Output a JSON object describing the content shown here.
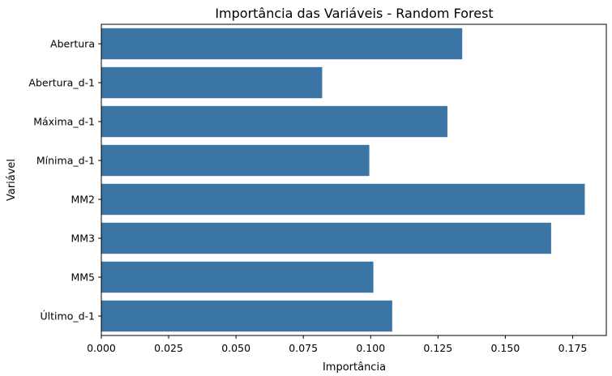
{
  "chart_data": {
    "type": "bar",
    "orientation": "horizontal",
    "title": "Importância das Variáveis - Random Forest",
    "xlabel": "Importância",
    "ylabel": "Variável",
    "categories": [
      "Abertura",
      "Abertura_d-1",
      "Máxima_d-1",
      "Mínima_d-1",
      "MM2",
      "MM3",
      "MM5",
      "Último_d-1"
    ],
    "values": [
      0.134,
      0.082,
      0.1285,
      0.0995,
      0.1795,
      0.167,
      0.101,
      0.108
    ],
    "xlim": [
      0,
      0.1875
    ],
    "xticks": [
      0.0,
      0.025,
      0.05,
      0.075,
      0.1,
      0.125,
      0.15,
      0.175
    ],
    "xtick_labels": [
      "0.000",
      "0.025",
      "0.050",
      "0.075",
      "0.100",
      "0.125",
      "0.150",
      "0.175"
    ],
    "grid": false,
    "bar_color": "#3b75a6"
  }
}
